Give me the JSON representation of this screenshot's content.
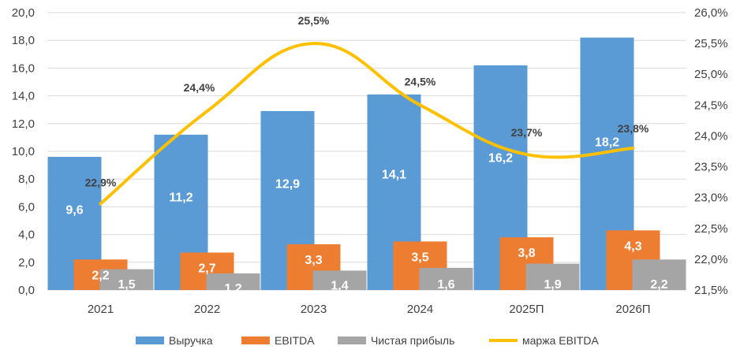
{
  "chart_data": {
    "type": "bar",
    "categories": [
      "2021",
      "2022",
      "2023",
      "2024",
      "2025П",
      "2026П"
    ],
    "series": [
      {
        "name": "Выручка",
        "type": "bar",
        "axis": "left",
        "color": "#5b9bd5",
        "values": [
          9.6,
          11.2,
          12.9,
          14.1,
          16.2,
          18.2
        ],
        "labels": [
          "9,6",
          "11,2",
          "12,9",
          "14,1",
          "16,2",
          "18,2"
        ]
      },
      {
        "name": "EBITDA",
        "type": "bar",
        "axis": "left",
        "color": "#ed7d31",
        "values": [
          2.2,
          2.7,
          3.3,
          3.5,
          3.8,
          4.3
        ],
        "labels": [
          "2,2",
          "2,7",
          "3,3",
          "3,5",
          "3,8",
          "4,3"
        ]
      },
      {
        "name": "Чистая прибыль",
        "type": "bar",
        "axis": "left",
        "color": "#a5a5a5",
        "values": [
          1.5,
          1.2,
          1.4,
          1.6,
          1.9,
          2.2
        ],
        "labels": [
          "1,5",
          "1,2",
          "1,4",
          "1,6",
          "1,9",
          "2,2"
        ]
      },
      {
        "name": "маржа EBITDA",
        "type": "line",
        "axis": "right",
        "color": "#ffc000",
        "values": [
          22.9,
          24.4,
          25.5,
          24.5,
          23.7,
          23.8
        ],
        "labels": [
          "22,9%",
          "24,4%",
          "25,5%",
          "24,5%",
          "23,7%",
          "23,8%"
        ]
      }
    ],
    "left_axis": {
      "ylim": [
        0,
        20
      ],
      "ticks": [
        0,
        2,
        4,
        6,
        8,
        10,
        12,
        14,
        16,
        18,
        20
      ],
      "tick_labels": [
        "0,0",
        "2,0",
        "4,0",
        "6,0",
        "8,0",
        "10,0",
        "12,0",
        "14,0",
        "16,0",
        "18,0",
        "20,0"
      ]
    },
    "right_axis": {
      "ylim": [
        21.5,
        26.0
      ],
      "ticks": [
        21.5,
        22.0,
        22.5,
        23.0,
        23.5,
        24.0,
        24.5,
        25.0,
        25.5,
        26.0
      ],
      "tick_labels": [
        "21,5%",
        "22,0%",
        "22,5%",
        "23,0%",
        "23,5%",
        "24,0%",
        "24,5%",
        "25,0%",
        "25,5%",
        "26,0%"
      ]
    },
    "grid": true,
    "legend": "bottom"
  }
}
